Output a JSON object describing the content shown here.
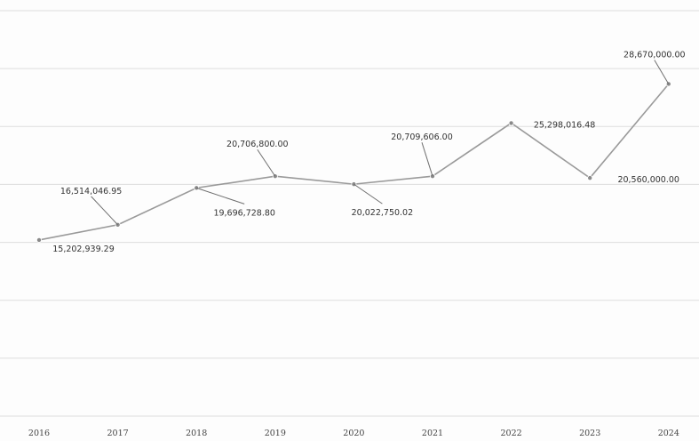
{
  "chart_data": {
    "type": "line",
    "title": "",
    "xlabel": "",
    "ylabel": "",
    "categories": [
      "2016",
      "2017",
      "2018",
      "2019",
      "2020",
      "2021",
      "2022",
      "2023",
      "2024"
    ],
    "series": [
      {
        "values": [
          15202939.29,
          16514046.95,
          19696728.8,
          20706800.0,
          20022750.02,
          20709606.0,
          25298016.48,
          20560000.0,
          28670000.0
        ]
      }
    ],
    "data_labels": [
      "15,202,939.29",
      "16,514,046.95",
      "19,696,728.80",
      "20,706,800.00",
      "20,022,750.02",
      "20,709,606.00",
      "25,298,016.48",
      "20,560,000.00",
      "28,670,000.00"
    ],
    "ylim": [
      0,
      35000000
    ],
    "grid": true,
    "legend": "none",
    "colors": {
      "line": "#9a9a9a",
      "grid": "#dddddd",
      "text": "#333333"
    }
  }
}
